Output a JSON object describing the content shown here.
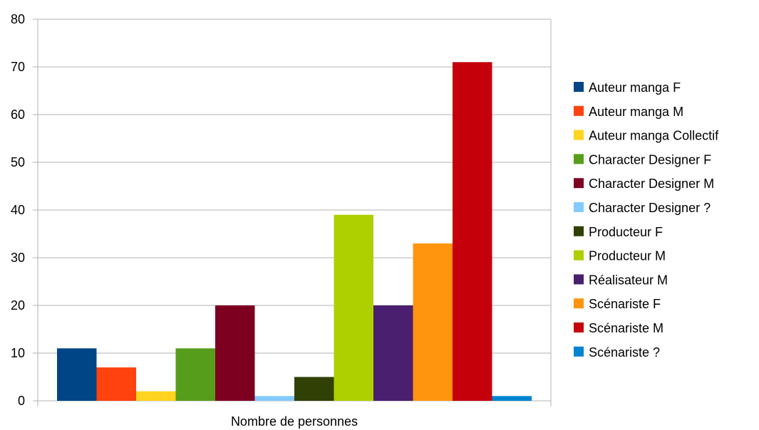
{
  "chart_data": {
    "type": "bar",
    "categories": [
      "Nombre de personnes"
    ],
    "series": [
      {
        "name": "Auteur manga F",
        "values": [
          11
        ],
        "color": "#004586"
      },
      {
        "name": "Auteur manga M",
        "values": [
          7
        ],
        "color": "#ff420e"
      },
      {
        "name": "Auteur manga Collectif",
        "values": [
          2
        ],
        "color": "#ffd320"
      },
      {
        "name": "Character Designer F",
        "values": [
          11
        ],
        "color": "#579d1c"
      },
      {
        "name": "Character Designer M",
        "values": [
          20
        ],
        "color": "#7e0021"
      },
      {
        "name": "Character Designer ?",
        "values": [
          1
        ],
        "color": "#83caff"
      },
      {
        "name": "Producteur F",
        "values": [
          5
        ],
        "color": "#314004"
      },
      {
        "name": "Producteur M",
        "values": [
          39
        ],
        "color": "#aecf00"
      },
      {
        "name": "Réalisateur M",
        "values": [
          20
        ],
        "color": "#4b1f6f"
      },
      {
        "name": "Scénariste F",
        "values": [
          33
        ],
        "color": "#ff950e"
      },
      {
        "name": "Scénariste M",
        "values": [
          71
        ],
        "color": "#c5000b"
      },
      {
        "name": "Scénariste ?",
        "values": [
          1
        ],
        "color": "#0084d1"
      }
    ],
    "ylim": [
      0,
      80
    ],
    "yticks": [
      "0",
      "10",
      "20",
      "30",
      "40",
      "50",
      "60",
      "70",
      "80"
    ],
    "grid": true,
    "legend_position": "right"
  }
}
